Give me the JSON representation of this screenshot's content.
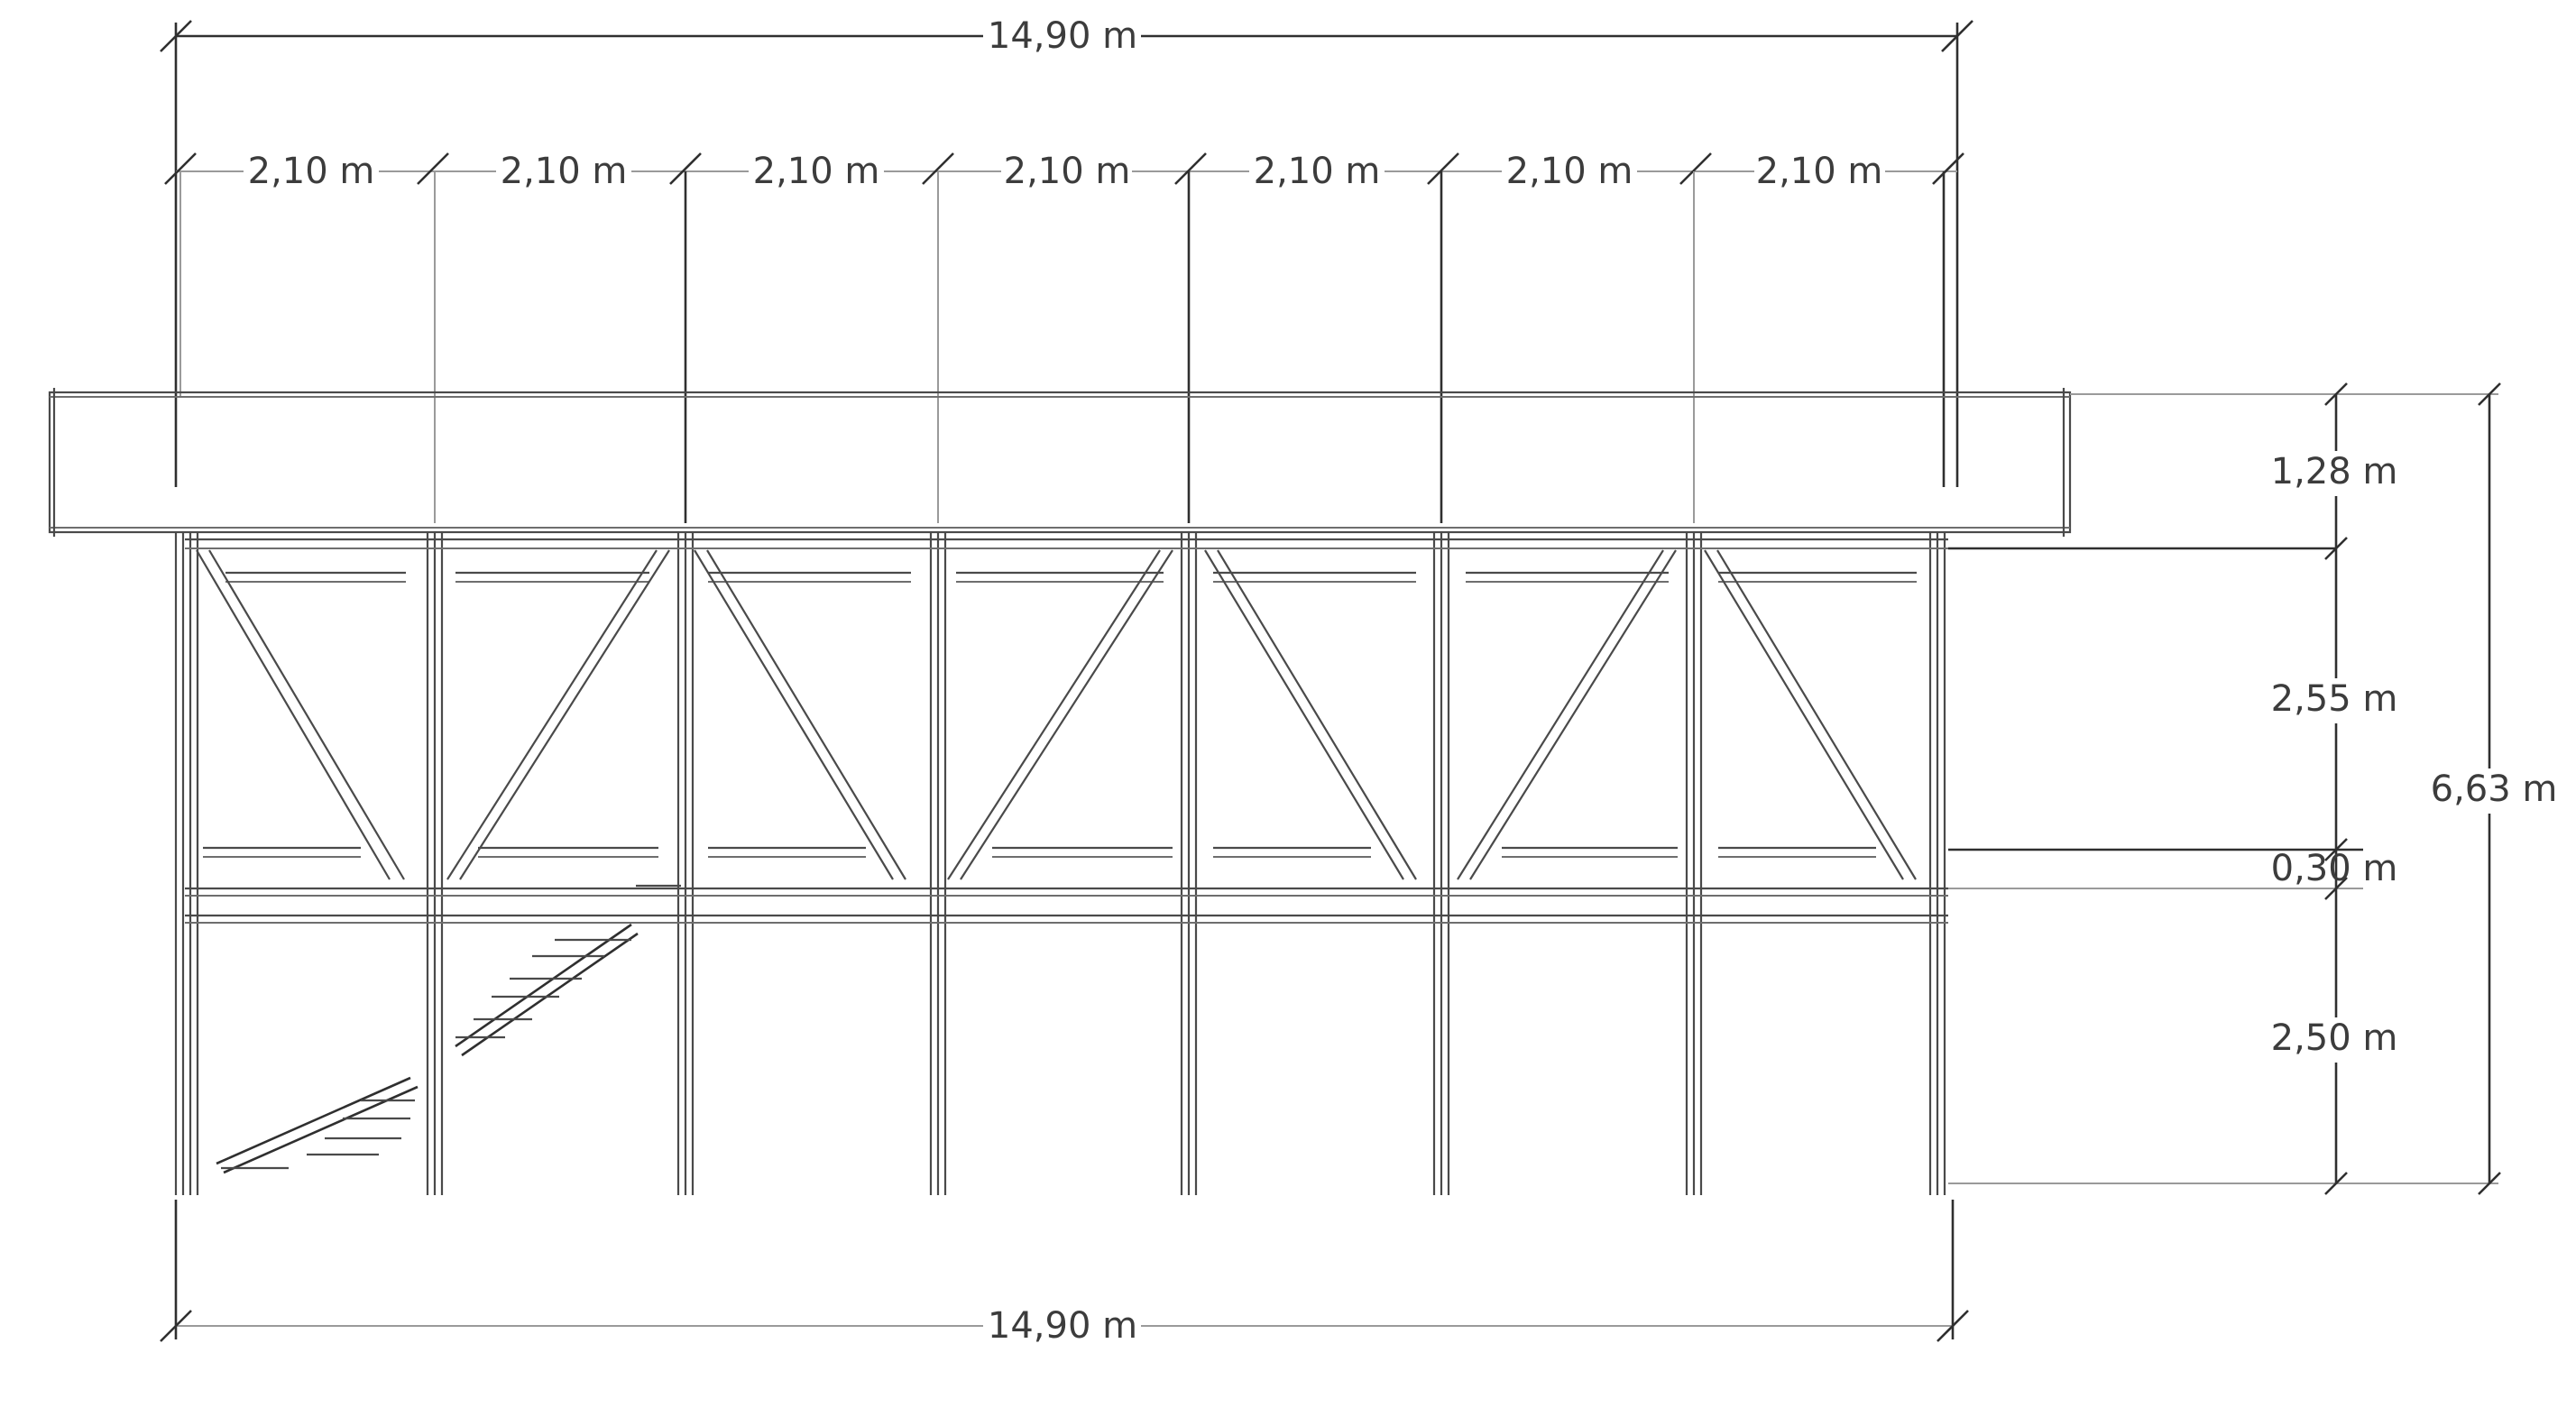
{
  "dimensions": {
    "top_total": "14,90 m",
    "bottom_total": "14,90 m",
    "bays": [
      "2,10 m",
      "2,10 m",
      "2,10 m",
      "2,10 m",
      "2,10 m",
      "2,10 m",
      "2,10 m"
    ],
    "heights": [
      "1,28 m",
      "2,55 m",
      "0,30 m",
      "2,50 m"
    ],
    "total_height": "6,63 m"
  }
}
